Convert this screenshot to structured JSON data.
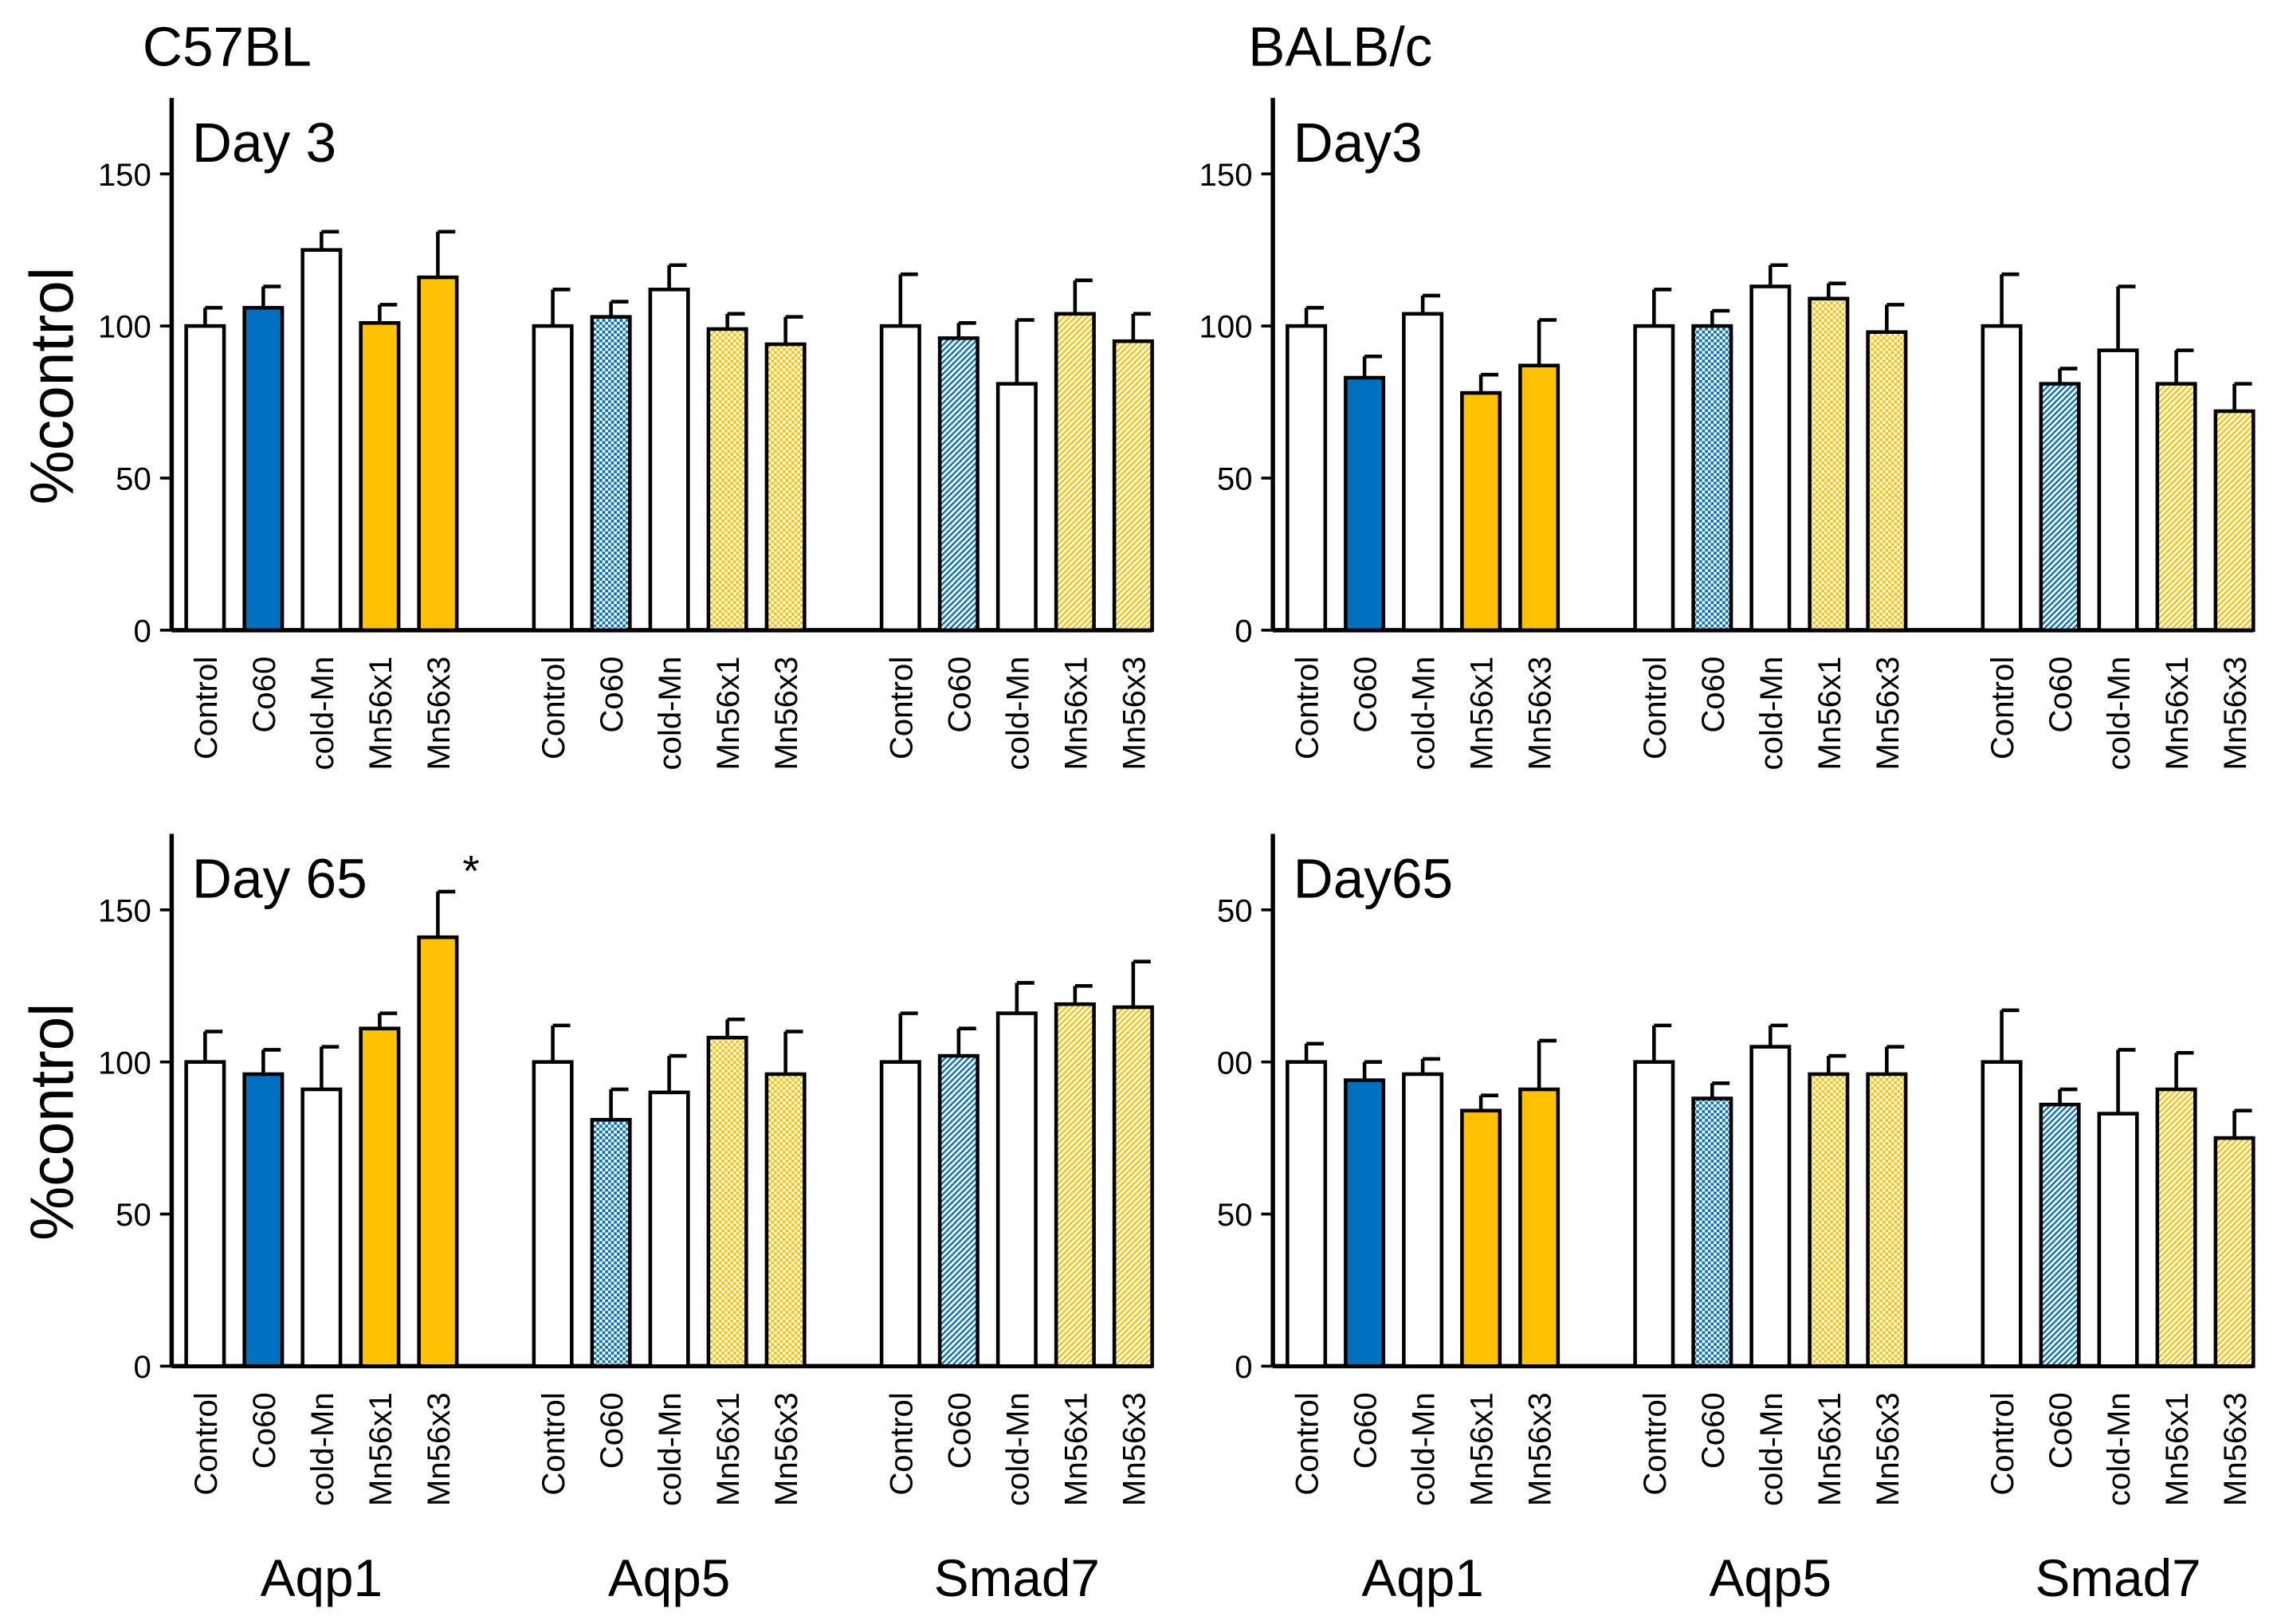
{
  "column_titles": [
    "C57BL",
    "BALB/c"
  ],
  "chart_data": [
    {
      "type": "bar",
      "panel_label": "Day 3",
      "ylabel": "%control",
      "categories": [
        "Control",
        "Co60",
        "cold-Mn",
        "Mn56x1",
        "Mn56x3",
        "Control",
        "Co60",
        "cold-Mn",
        "Mn56x1",
        "Mn56x3",
        "Control",
        "Co60",
        "cold-Mn",
        "Mn56x1",
        "Mn56x3"
      ],
      "values": [
        100,
        106,
        125,
        101,
        116,
        100,
        103,
        112,
        99,
        94,
        100,
        96,
        81,
        104,
        95
      ],
      "errors": [
        6,
        7,
        6,
        6,
        15,
        12,
        5,
        8,
        5,
        9,
        17,
        5,
        21,
        11,
        9
      ],
      "colors": [
        "#ffffff",
        "#0070c0",
        "#ffffff",
        "#ffc000",
        "#ffc000",
        "#ffffff",
        "#0070c0",
        "#ffffff",
        "#ffc000",
        "#ffc000",
        "#ffffff",
        "#0070c0",
        "#ffffff",
        "#ffc000",
        "#ffc000"
      ],
      "patterns": [
        "solid",
        "solid",
        "solid",
        "solid",
        "solid",
        "dots",
        "dots",
        "dots",
        "dots",
        "dots",
        "hatch",
        "hatch",
        "hatch",
        "hatch",
        "hatch"
      ],
      "ylim": [
        0,
        175
      ],
      "yticks": [
        0,
        50,
        100,
        150
      ]
    },
    {
      "type": "bar",
      "panel_label": "Day3",
      "categories": [
        "Control",
        "Co60",
        "cold-Mn",
        "Mn56x1",
        "Mn56x3",
        "Control",
        "Co60",
        "cold-Mn",
        "Mn56x1",
        "Mn56x3",
        "Control",
        "Co60",
        "cold-Mn",
        "Mn56x1",
        "Mn56x3"
      ],
      "values": [
        100,
        83,
        104,
        78,
        87,
        100,
        100,
        113,
        109,
        98,
        100,
        81,
        92,
        81,
        72
      ],
      "errors": [
        6,
        7,
        6,
        6,
        15,
        12,
        5,
        7,
        5,
        9,
        17,
        5,
        21,
        11,
        9
      ],
      "colors": [
        "#ffffff",
        "#0070c0",
        "#ffffff",
        "#ffc000",
        "#ffc000",
        "#ffffff",
        "#0070c0",
        "#ffffff",
        "#ffc000",
        "#ffc000",
        "#ffffff",
        "#0070c0",
        "#ffffff",
        "#ffc000",
        "#ffc000"
      ],
      "patterns": [
        "solid",
        "solid",
        "solid",
        "solid",
        "solid",
        "dots",
        "dots",
        "dots",
        "dots",
        "dots",
        "hatch",
        "hatch",
        "hatch",
        "hatch",
        "hatch"
      ],
      "ylim": [
        0,
        175
      ],
      "yticks": [
        0,
        50,
        100,
        150
      ]
    },
    {
      "type": "bar",
      "panel_label": "Day 65",
      "ylabel": "%control",
      "categories": [
        "Control",
        "Co60",
        "cold-Mn",
        "Mn56x1",
        "Mn56x3",
        "Control",
        "Co60",
        "cold-Mn",
        "Mn56x1",
        "Mn56x3",
        "Control",
        "Co60",
        "cold-Mn",
        "Mn56x1",
        "Mn56x3"
      ],
      "groups": [
        "Aqp1",
        "Aqp5",
        "Smad7"
      ],
      "values": [
        100,
        96,
        91,
        111,
        141,
        100,
        81,
        90,
        108,
        96,
        100,
        102,
        116,
        119,
        118
      ],
      "errors": [
        10,
        8,
        14,
        5,
        15,
        12,
        10,
        12,
        6,
        14,
        16,
        9,
        10,
        6,
        15
      ],
      "colors": [
        "#ffffff",
        "#0070c0",
        "#ffffff",
        "#ffc000",
        "#ffc000",
        "#ffffff",
        "#0070c0",
        "#ffffff",
        "#ffc000",
        "#ffc000",
        "#ffffff",
        "#0070c0",
        "#ffffff",
        "#ffc000",
        "#ffc000"
      ],
      "patterns": [
        "solid",
        "solid",
        "solid",
        "solid",
        "solid",
        "dots",
        "dots",
        "dots",
        "dots",
        "dots",
        "hatch",
        "hatch",
        "hatch",
        "hatch",
        "hatch"
      ],
      "annotations": [
        {
          "text": "*",
          "bar": 4,
          "color": "#ff0000"
        }
      ],
      "ylim": [
        0,
        175
      ],
      "yticks": [
        0,
        50,
        100,
        150
      ]
    },
    {
      "type": "bar",
      "panel_label": "Day65",
      "categories": [
        "Control",
        "Co60",
        "cold-Mn",
        "Mn56x1",
        "Mn56x3",
        "Control",
        "Co60",
        "cold-Mn",
        "Mn56x1",
        "Mn56x3",
        "Control",
        "Co60",
        "cold-Mn",
        "Mn56x1",
        "Mn56x3"
      ],
      "groups": [
        "Aqp1",
        "Aqp5",
        "Smad7"
      ],
      "values": [
        100,
        94,
        96,
        84,
        91,
        100,
        88,
        105,
        96,
        96,
        100,
        86,
        83,
        91,
        75
      ],
      "errors": [
        6,
        6,
        5,
        5,
        16,
        12,
        5,
        7,
        6,
        9,
        17,
        5,
        21,
        12,
        9
      ],
      "colors": [
        "#ffffff",
        "#0070c0",
        "#ffffff",
        "#ffc000",
        "#ffc000",
        "#ffffff",
        "#0070c0",
        "#ffffff",
        "#ffc000",
        "#ffc000",
        "#ffffff",
        "#0070c0",
        "#ffffff",
        "#ffc000",
        "#ffc000"
      ],
      "patterns": [
        "solid",
        "solid",
        "solid",
        "solid",
        "solid",
        "dots",
        "dots",
        "dots",
        "dots",
        "dots",
        "hatch",
        "hatch",
        "hatch",
        "hatch",
        "hatch"
      ],
      "ylim": [
        0,
        175
      ],
      "yticks": [
        0,
        50,
        {
          "value": 100,
          "label": "00"
        },
        {
          "value": 150,
          "label": "50"
        }
      ]
    }
  ]
}
